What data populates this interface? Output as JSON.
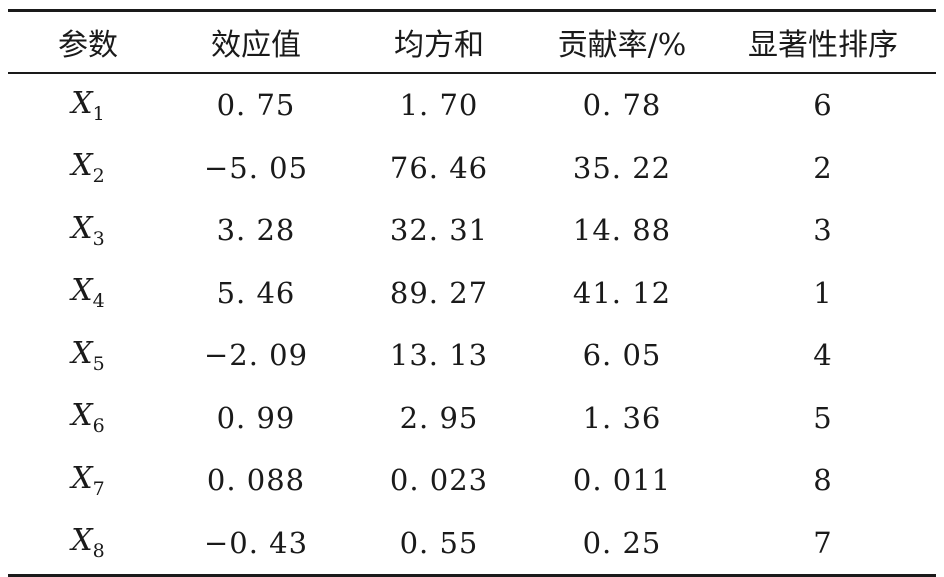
{
  "table": {
    "headers": [
      "参数",
      "效应值",
      "均方和",
      "贡献率/%",
      "显著性排序"
    ],
    "rows": [
      {
        "param": "X",
        "sub": "1",
        "effect": "0. 75",
        "ms": "1. 70",
        "contrib": "0. 78",
        "rank": "6"
      },
      {
        "param": "X",
        "sub": "2",
        "effect": "−5. 05",
        "ms": "76. 46",
        "contrib": "35. 22",
        "rank": "2"
      },
      {
        "param": "X",
        "sub": "3",
        "effect": "3. 28",
        "ms": "32. 31",
        "contrib": "14. 88",
        "rank": "3"
      },
      {
        "param": "X",
        "sub": "4",
        "effect": "5. 46",
        "ms": "89. 27",
        "contrib": "41. 12",
        "rank": "1"
      },
      {
        "param": "X",
        "sub": "5",
        "effect": "−2. 09",
        "ms": "13. 13",
        "contrib": "6. 05",
        "rank": "4"
      },
      {
        "param": "X",
        "sub": "6",
        "effect": "0. 99",
        "ms": "2. 95",
        "contrib": "1. 36",
        "rank": "5"
      },
      {
        "param": "X",
        "sub": "7",
        "effect": "0. 088",
        "ms": "0. 023",
        "contrib": "0. 011",
        "rank": "8"
      },
      {
        "param": "X",
        "sub": "8",
        "effect": "−0. 43",
        "ms": "0. 55",
        "contrib": "0. 25",
        "rank": "7"
      }
    ]
  }
}
